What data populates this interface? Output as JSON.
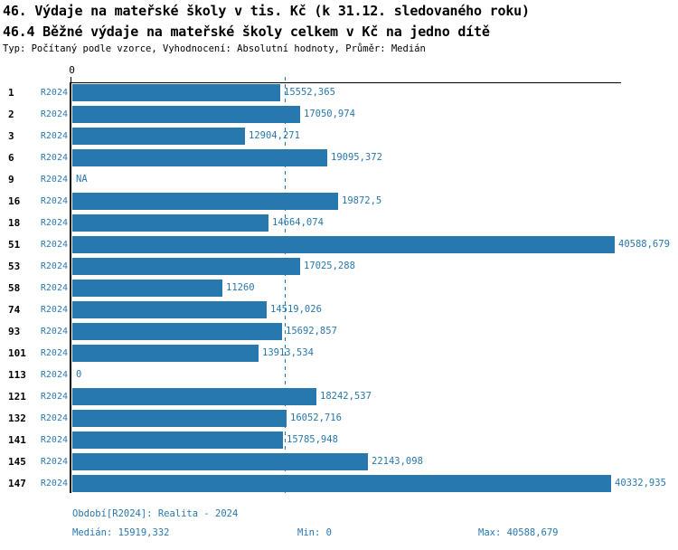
{
  "header": {
    "title": "46. Výdaje na mateřské školy v tis. Kč (k 31.12. sledovaného roku)",
    "subtitle": "46.4 Běžné výdaje na mateřské školy celkem v Kč na jedno dítě",
    "meta": "Typ: Počítaný podle vzorce, Vyhodnocení: Absolutní hodnoty, Průměr: Medián"
  },
  "chart_data": {
    "type": "bar",
    "orientation": "horizontal",
    "title": "46.4 Běžné výdaje na mateřské školy celkem v Kč na jedno dítě",
    "categories": [
      "1",
      "2",
      "3",
      "6",
      "9",
      "16",
      "18",
      "51",
      "53",
      "58",
      "74",
      "93",
      "101",
      "113",
      "121",
      "132",
      "141",
      "145",
      "147"
    ],
    "series": [
      {
        "name": "R2024",
        "values": [
          15552.365,
          17050.974,
          12904.271,
          19095.372,
          null,
          19872.5,
          14664.074,
          40588.679,
          17025.288,
          11260,
          14519.026,
          15692.857,
          13913.534,
          0,
          18242.537,
          16052.716,
          15785.948,
          22143.098,
          40332.935
        ]
      }
    ],
    "value_labels": [
      "15552,365",
      "17050,974",
      "12904,271",
      "19095,372",
      "NA",
      "19872,5",
      "14664,074",
      "40588,679",
      "17025,288",
      "11260",
      "14519,026",
      "15692,857",
      "13913,534",
      "0",
      "18242,537",
      "16052,716",
      "15785,948",
      "22143,098",
      "40332,935"
    ],
    "xlim": [
      0,
      40588.679
    ],
    "x_axis_ticks": [
      "0"
    ],
    "median_line_value": 15919.332,
    "legend_position": "none",
    "grid": "off"
  },
  "footer": {
    "period_line": "Období[R2024]: Realita - 2024",
    "median": "Medián: 15919,332",
    "min": "Min: 0",
    "max": "Max: 40588,679"
  },
  "colors": {
    "accent": "#2878b0",
    "axis": "#000000",
    "background": "#ffffff"
  }
}
